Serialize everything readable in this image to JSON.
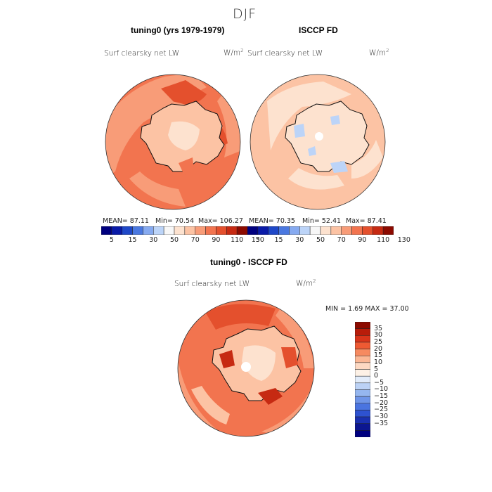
{
  "season": "DJF",
  "panels": [
    {
      "title": "tuning0 (yrs 1979-1979)",
      "var": "Surf clearsky net LW",
      "units": "W/m",
      "units_sup": "2",
      "stats": {
        "mean": "MEAN=   87.11",
        "min": "Min=   70.54",
        "max": "Max=  106.27"
      }
    },
    {
      "title": "ISCCP FD",
      "var": "Surf clearsky net LW",
      "units": "W/m",
      "units_sup": "2",
      "stats": {
        "mean": "MEAN=   70.35",
        "min": "Min=   52.41",
        "max": "Max=   87.41"
      }
    },
    {
      "title": "tuning0 - ISCCP FD",
      "var": "Surf clearsky net LW",
      "units": "W/m",
      "units_sup": "2",
      "minmax": "MIN =    1.69 MAX =   37.00"
    }
  ],
  "abs_colorbar": {
    "colors": [
      "#00007f",
      "#0a1ba8",
      "#1f48c8",
      "#4a78e0",
      "#86aaf0",
      "#bcd4f8",
      "#f7f7f7",
      "#fde2cf",
      "#fcc3a4",
      "#f89c78",
      "#f2744f",
      "#e4502d",
      "#c62a12",
      "#8c0a00"
    ],
    "labels": [
      "5",
      "15",
      "30",
      "50",
      "70",
      "90",
      "110",
      "130"
    ]
  },
  "diff_colorbar": {
    "colors": [
      "#8c0a00",
      "#b81c0a",
      "#d8341a",
      "#ee5a33",
      "#f68a60",
      "#fbb795",
      "#fdd9c3",
      "#fdf1e6",
      "#e2ecfa",
      "#bcd2f5",
      "#95b6ef",
      "#6f95e8",
      "#4a74e0",
      "#2e52d0",
      "#1a30b0",
      "#0c1690",
      "#00007f"
    ],
    "labels": [
      "35",
      "30",
      "25",
      "20",
      "15",
      "10",
      "5",
      "0",
      "−5",
      "−10",
      "−15",
      "−20",
      "−25",
      "−30",
      "−35"
    ]
  }
}
